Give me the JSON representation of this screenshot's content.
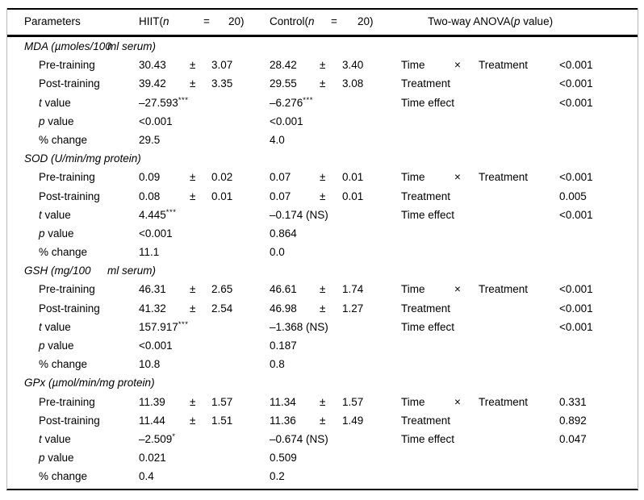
{
  "header": {
    "parameters": "Parameters",
    "hiit": {
      "pre": "HIIT(",
      "n": "n",
      "eq": "=",
      "num": "20)"
    },
    "control": {
      "pre": "Control(",
      "n": "n",
      "eq": "=",
      "num": "20)"
    },
    "anova": {
      "pre": "Two-way ANOVA(",
      "p": "p",
      "post": " value)"
    }
  },
  "sections": [
    {
      "title1": "MDA (µmoles/100",
      "title2": "ml serum)",
      "rows": [
        {
          "label": {
            "i": "",
            "t": "Pre-training"
          },
          "h1": "30.43",
          "hstars": "",
          "hpm": "±",
          "h2": "3.07",
          "c1": "28.42",
          "cstars": "",
          "cpm": "±",
          "c2": "3.40",
          "aa": "Time",
          "ab": "×",
          "ac": "Treatment",
          "p": "<0.001"
        },
        {
          "label": {
            "i": "",
            "t": "Post-training"
          },
          "h1": "39.42",
          "hstars": "",
          "hpm": "±",
          "h2": "3.35",
          "c1": "29.55",
          "cstars": "",
          "cpm": "±",
          "c2": "3.08",
          "aa": "Treatment",
          "ab": "",
          "ac": "",
          "p": "<0.001"
        },
        {
          "label": {
            "i": "t",
            "t": " value"
          },
          "h1": "–27.593",
          "hstars": "***",
          "hpm": "",
          "h2": "",
          "c1": "–6.276",
          "cstars": "***",
          "cpm": "",
          "c2": "",
          "aa": "Time effect",
          "ab": "",
          "ac": "",
          "p": "<0.001"
        },
        {
          "label": {
            "i": "p",
            "t": " value"
          },
          "h1": "<0.001",
          "hstars": "",
          "hpm": "",
          "h2": "",
          "c1": "<0.001",
          "cstars": "",
          "cpm": "",
          "c2": "",
          "aa": "",
          "ab": "",
          "ac": "",
          "p": ""
        },
        {
          "label": {
            "i": "",
            "t": "% change"
          },
          "h1": "29.5",
          "hstars": "",
          "hpm": "",
          "h2": "",
          "c1": "4.0",
          "cstars": "",
          "cpm": "",
          "c2": "",
          "aa": "",
          "ab": "",
          "ac": "",
          "p": ""
        }
      ]
    },
    {
      "title1": "SOD (U/min/mg protein)",
      "title2": "",
      "rows": [
        {
          "label": {
            "i": "",
            "t": "Pre-training"
          },
          "h1": "0.09",
          "hstars": "",
          "hpm": "±",
          "h2": "0.02",
          "c1": "0.07",
          "cstars": "",
          "cpm": "±",
          "c2": "0.01",
          "aa": "Time",
          "ab": "×",
          "ac": "Treatment",
          "p": "<0.001"
        },
        {
          "label": {
            "i": "",
            "t": "Post-training"
          },
          "h1": "0.08",
          "hstars": "",
          "hpm": "±",
          "h2": "0.01",
          "c1": "0.07",
          "cstars": "",
          "cpm": "±",
          "c2": "0.01",
          "aa": "Treatment",
          "ab": "",
          "ac": "",
          "p": "0.005"
        },
        {
          "label": {
            "i": "t",
            "t": " value"
          },
          "h1": "4.445",
          "hstars": "***",
          "hpm": "",
          "h2": "",
          "c1": "–0.174 (NS)",
          "cstars": "",
          "cpm": "",
          "c2": "",
          "aa": "Time effect",
          "ab": "",
          "ac": "",
          "p": "<0.001"
        },
        {
          "label": {
            "i": "p",
            "t": " value"
          },
          "h1": "<0.001",
          "hstars": "",
          "hpm": "",
          "h2": "",
          "c1": "0.864",
          "cstars": "",
          "cpm": "",
          "c2": "",
          "aa": "",
          "ab": "",
          "ac": "",
          "p": ""
        },
        {
          "label": {
            "i": "",
            "t": "% change"
          },
          "h1": "11.1",
          "hstars": "",
          "hpm": "",
          "h2": "",
          "c1": "0.0",
          "cstars": "",
          "cpm": "",
          "c2": "",
          "aa": "",
          "ab": "",
          "ac": "",
          "p": ""
        }
      ]
    },
    {
      "title1": "GSH (mg/100",
      "title2": "ml serum)",
      "rows": [
        {
          "label": {
            "i": "",
            "t": "Pre-training"
          },
          "h1": "46.31",
          "hstars": "",
          "hpm": "±",
          "h2": "2.65",
          "c1": "46.61",
          "cstars": "",
          "cpm": "±",
          "c2": "1.74",
          "aa": "Time",
          "ab": "×",
          "ac": "Treatment",
          "p": "<0.001"
        },
        {
          "label": {
            "i": "",
            "t": "Post-training"
          },
          "h1": "41.32",
          "hstars": "",
          "hpm": "±",
          "h2": "2.54",
          "c1": "46.98",
          "cstars": "",
          "cpm": "±",
          "c2": "1.27",
          "aa": "Treatment",
          "ab": "",
          "ac": "",
          "p": "<0.001"
        },
        {
          "label": {
            "i": "t",
            "t": " value"
          },
          "h1": "157.917",
          "hstars": "***",
          "hpm": "",
          "h2": "",
          "c1": "–1.368 (NS)",
          "cstars": "",
          "cpm": "",
          "c2": "",
          "aa": "Time effect",
          "ab": "",
          "ac": "",
          "p": "<0.001"
        },
        {
          "label": {
            "i": "p",
            "t": " value"
          },
          "h1": "<0.001",
          "hstars": "",
          "hpm": "",
          "h2": "",
          "c1": "0.187",
          "cstars": "",
          "cpm": "",
          "c2": "",
          "aa": "",
          "ab": "",
          "ac": "",
          "p": ""
        },
        {
          "label": {
            "i": "",
            "t": "% change"
          },
          "h1": "10.8",
          "hstars": "",
          "hpm": "",
          "h2": "",
          "c1": "0.8",
          "cstars": "",
          "cpm": "",
          "c2": "",
          "aa": "",
          "ab": "",
          "ac": "",
          "p": ""
        }
      ]
    },
    {
      "title1": "GPx (µmol/min/mg protein)",
      "title2": "",
      "rows": [
        {
          "label": {
            "i": "",
            "t": "Pre-training"
          },
          "h1": "11.39",
          "hstars": "",
          "hpm": "±",
          "h2": "1.57",
          "c1": "11.34",
          "cstars": "",
          "cpm": "±",
          "c2": "1.57",
          "aa": "Time",
          "ab": "×",
          "ac": "Treatment",
          "p": "0.331"
        },
        {
          "label": {
            "i": "",
            "t": "Post-training"
          },
          "h1": "11.44",
          "hstars": "",
          "hpm": "±",
          "h2": "1.51",
          "c1": "11.36",
          "cstars": "",
          "cpm": "±",
          "c2": "1.49",
          "aa": "Treatment",
          "ab": "",
          "ac": "",
          "p": "0.892"
        },
        {
          "label": {
            "i": "t",
            "t": " value"
          },
          "h1": "–2.509",
          "hstars": "*",
          "hpm": "",
          "h2": "",
          "c1": "–0.674 (NS)",
          "cstars": "",
          "cpm": "",
          "c2": "",
          "aa": "Time effect",
          "ab": "",
          "ac": "",
          "p": "0.047"
        },
        {
          "label": {
            "i": "p",
            "t": " value"
          },
          "h1": "0.021",
          "hstars": "",
          "hpm": "",
          "h2": "",
          "c1": "0.509",
          "cstars": "",
          "cpm": "",
          "c2": "",
          "aa": "",
          "ab": "",
          "ac": "",
          "p": ""
        },
        {
          "label": {
            "i": "",
            "t": "% change"
          },
          "h1": "0.4",
          "hstars": "",
          "hpm": "",
          "h2": "",
          "c1": "0.2",
          "cstars": "",
          "cpm": "",
          "c2": "",
          "aa": "",
          "ab": "",
          "ac": "",
          "p": ""
        }
      ]
    }
  ]
}
